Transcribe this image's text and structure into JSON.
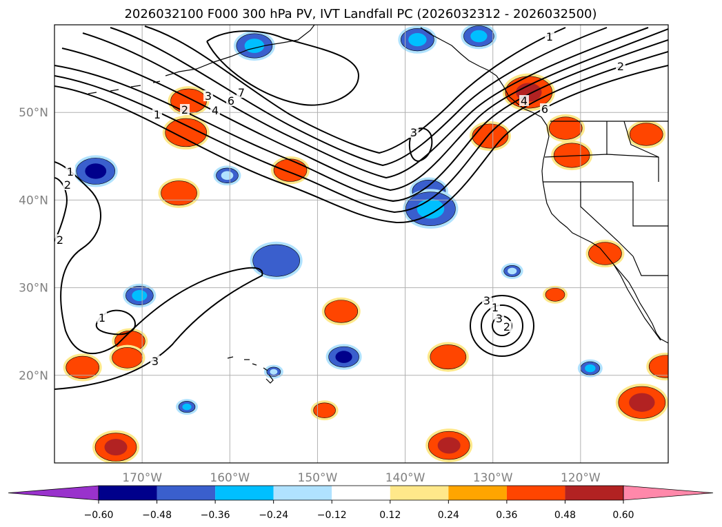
{
  "chart_data": {
    "type": "heatmap",
    "title": "2026032100 F000 300 hPa PV, IVT Landfall PC (2026032312 - 2026032500)",
    "xlabel": "",
    "ylabel": "",
    "lon_range": [
      -180,
      -110
    ],
    "lat_range": [
      10,
      60
    ],
    "x_ticks": [
      {
        "value": -170,
        "label": "170°W"
      },
      {
        "value": -160,
        "label": "160°W"
      },
      {
        "value": -150,
        "label": "150°W"
      },
      {
        "value": -140,
        "label": "140°W"
      },
      {
        "value": -130,
        "label": "130°W"
      },
      {
        "value": -120,
        "label": "120°W"
      }
    ],
    "y_ticks": [
      {
        "value": 50,
        "label": "50°N"
      },
      {
        "value": 40,
        "label": "40°N"
      },
      {
        "value": 30,
        "label": "30°N"
      },
      {
        "value": 20,
        "label": "20°N"
      }
    ],
    "grid": true,
    "colorbar": {
      "orientation": "horizontal",
      "extend": "both",
      "bounds": [
        -0.6,
        -0.48,
        -0.36,
        -0.24,
        -0.12,
        0.12,
        0.24,
        0.36,
        0.48,
        0.6
      ],
      "tick_labels": [
        "−0.60",
        "−0.48",
        "−0.36",
        "−0.24",
        "−0.12",
        "0.12",
        "0.24",
        "0.36",
        "0.48",
        "0.60"
      ],
      "under_color": "#9932cc",
      "over_color": "#ff88aa",
      "colors": [
        "#00008b",
        "#3a5fcd",
        "#00bfff",
        "#b0e2ff",
        "#ffffff",
        "#ffe88a",
        "#ffa500",
        "#ff4500",
        "#b22222"
      ]
    },
    "pv_contour_labels": [
      "1",
      "2",
      "3",
      "4",
      "6",
      "7",
      "1",
      "2",
      "3",
      "4",
      "6",
      "1",
      "2",
      "3",
      "1",
      "2",
      "3",
      "1",
      "2",
      "3"
    ],
    "contour_sets": [
      {
        "name": "pv-trough-contours",
        "type": "line",
        "data_units": "lon/lat"
      },
      {
        "name": "pv-low-contours",
        "type": "line",
        "data_units": "lon/lat"
      }
    ],
    "anomaly_blobs": [
      {
        "lon": -137.3,
        "lat": 41.0,
        "value": -0.4
      },
      {
        "lon": -137.1,
        "lat": 39.0,
        "value": -0.3
      },
      {
        "lon": -165.0,
        "lat": 47.7,
        "value": 0.4
      },
      {
        "lon": -164.7,
        "lat": 51.3,
        "value": 0.4
      },
      {
        "lon": -175.3,
        "lat": 43.3,
        "value": -0.5
      },
      {
        "lon": -171.4,
        "lat": 23.9,
        "value": 0.36
      },
      {
        "lon": -165.8,
        "lat": 40.8,
        "value": 0.36
      },
      {
        "lon": -160.3,
        "lat": 42.8,
        "value": -0.24
      },
      {
        "lon": -153.1,
        "lat": 43.4,
        "value": 0.38
      },
      {
        "lon": -154.7,
        "lat": 33.1,
        "value": -0.4
      },
      {
        "lon": -147.3,
        "lat": 27.3,
        "value": 0.36
      },
      {
        "lon": -147.0,
        "lat": 22.1,
        "value": -0.52
      },
      {
        "lon": -171.7,
        "lat": 22.0,
        "value": 0.38
      },
      {
        "lon": -135.1,
        "lat": 22.1,
        "value": 0.38
      },
      {
        "lon": -176.8,
        "lat": 20.9,
        "value": 0.36
      },
      {
        "lon": -135.0,
        "lat": 12.0,
        "value": 0.48
      },
      {
        "lon": -173.0,
        "lat": 11.8,
        "value": 0.48
      },
      {
        "lon": -113.0,
        "lat": 16.9,
        "value": 0.5
      },
      {
        "lon": -117.2,
        "lat": 33.9,
        "value": 0.44
      },
      {
        "lon": -125.9,
        "lat": 52.3,
        "value": 0.48
      },
      {
        "lon": -121.0,
        "lat": 45.1,
        "value": 0.38
      },
      {
        "lon": -121.7,
        "lat": 48.2,
        "value": 0.4
      },
      {
        "lon": -130.3,
        "lat": 47.3,
        "value": 0.38
      },
      {
        "lon": -112.5,
        "lat": 47.5,
        "value": 0.4
      },
      {
        "lon": -157.2,
        "lat": 57.6,
        "value": -0.36
      },
      {
        "lon": -131.6,
        "lat": 58.7,
        "value": -0.36
      },
      {
        "lon": -138.6,
        "lat": 58.3,
        "value": -0.3
      },
      {
        "lon": -170.3,
        "lat": 29.1,
        "value": -0.3
      },
      {
        "lon": -149.2,
        "lat": 16.0,
        "value": 0.4
      },
      {
        "lon": -110.3,
        "lat": 21.0,
        "value": 0.38
      },
      {
        "lon": -118.9,
        "lat": 20.8,
        "value": -0.3
      },
      {
        "lon": -122.9,
        "lat": 29.2,
        "value": 0.38
      },
      {
        "lon": -164.9,
        "lat": 16.4,
        "value": -0.3
      },
      {
        "lon": -155.0,
        "lat": 20.4,
        "value": -0.24
      },
      {
        "lon": -127.8,
        "lat": 31.9,
        "value": -0.24
      }
    ]
  }
}
